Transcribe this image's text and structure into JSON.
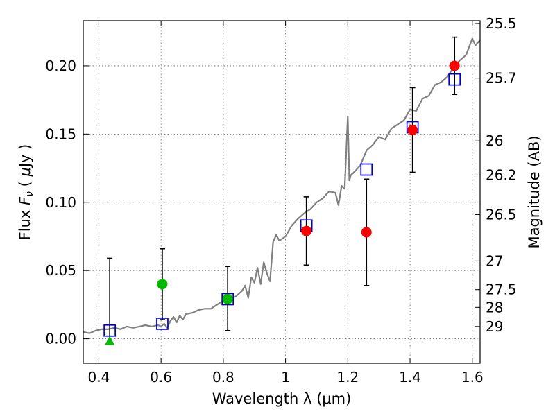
{
  "chart_data": {
    "type": "scatter",
    "title": "",
    "xlabel": "Wavelength  λ (μm)",
    "ylabel": "Flux  F_ν  ( μJy )",
    "ylabel_parts": [
      "Flux  ",
      "F",
      "ν",
      "  ( ",
      "μ",
      "Jy )"
    ],
    "y2label": "Magnitude (AB)",
    "xlim": [
      0.35,
      1.625
    ],
    "ylim": [
      -0.018,
      0.233
    ],
    "grid": true,
    "xticks": [
      0.4,
      0.6,
      0.8,
      1.0,
      1.2,
      1.4,
      1.6
    ],
    "xtick_labels": [
      "0.4",
      "0.6",
      "0.8",
      "1",
      "1.2",
      "1.4",
      "1.6"
    ],
    "yticks": [
      0.0,
      0.05,
      0.1,
      0.15,
      0.2
    ],
    "ytick_labels": [
      "0.00",
      "0.05",
      "0.10",
      "0.15",
      "0.20"
    ],
    "mag_ticks": [
      {
        "label": "25.5",
        "flux": 0.231
      },
      {
        "label": "25.7",
        "flux": 0.191
      },
      {
        "label": "26",
        "flux": 0.145
      },
      {
        "label": "26.2",
        "flux": 0.12
      },
      {
        "label": "26.5",
        "flux": 0.091
      },
      {
        "label": "27",
        "flux": 0.057
      },
      {
        "label": "27.5",
        "flux": 0.036
      },
      {
        "label": "28",
        "flux": 0.023
      },
      {
        "label": "29",
        "flux": 0.009
      }
    ],
    "colors": {
      "spectrum": "#808080",
      "model": "#0000cc",
      "detected": "#ff0000",
      "dropout": "#00bb00",
      "errorbar": "#000000"
    },
    "series": [
      {
        "kind": "spectrum",
        "x": [
          0.35,
          0.37,
          0.39,
          0.41,
          0.43,
          0.45,
          0.47,
          0.49,
          0.51,
          0.53,
          0.55,
          0.57,
          0.59,
          0.6,
          0.61,
          0.62,
          0.63,
          0.64,
          0.65,
          0.66,
          0.67,
          0.68,
          0.7,
          0.72,
          0.74,
          0.76,
          0.78,
          0.8,
          0.82,
          0.84,
          0.86,
          0.87,
          0.88,
          0.89,
          0.9,
          0.91,
          0.92,
          0.93,
          0.94,
          0.95,
          0.96,
          0.97,
          0.98,
          1.0,
          1.02,
          1.04,
          1.06,
          1.08,
          1.1,
          1.12,
          1.14,
          1.16,
          1.17,
          1.18,
          1.19,
          1.2,
          1.205,
          1.21,
          1.22,
          1.24,
          1.26,
          1.28,
          1.3,
          1.32,
          1.34,
          1.36,
          1.38,
          1.4,
          1.42,
          1.44,
          1.46,
          1.48,
          1.5,
          1.52,
          1.54,
          1.56,
          1.58,
          1.6,
          1.61,
          1.625
        ],
        "y": [
          0.005,
          0.004,
          0.006,
          0.007,
          0.007,
          0.008,
          0.007,
          0.009,
          0.008,
          0.009,
          0.01,
          0.009,
          0.01,
          0.009,
          0.011,
          0.008,
          0.013,
          0.016,
          0.012,
          0.017,
          0.014,
          0.018,
          0.019,
          0.021,
          0.022,
          0.022,
          0.025,
          0.028,
          0.029,
          0.031,
          0.035,
          0.039,
          0.03,
          0.045,
          0.041,
          0.052,
          0.04,
          0.056,
          0.048,
          0.042,
          0.071,
          0.076,
          0.072,
          0.075,
          0.083,
          0.088,
          0.092,
          0.095,
          0.1,
          0.103,
          0.108,
          0.107,
          0.098,
          0.112,
          0.11,
          0.163,
          0.116,
          0.12,
          0.122,
          0.127,
          0.138,
          0.142,
          0.148,
          0.146,
          0.154,
          0.157,
          0.16,
          0.168,
          0.167,
          0.176,
          0.178,
          0.186,
          0.188,
          0.192,
          0.199,
          0.204,
          0.208,
          0.22,
          0.215,
          0.219
        ]
      },
      {
        "kind": "model",
        "marker": "square",
        "x": [
          0.435,
          0.604,
          0.814,
          1.067,
          1.26,
          1.408,
          1.543
        ],
        "y": [
          0.006,
          0.011,
          0.029,
          0.083,
          0.124,
          0.155,
          0.19
        ]
      },
      {
        "kind": "detected",
        "marker": "circle",
        "x": [
          1.067,
          1.26,
          1.408,
          1.543
        ],
        "y": [
          0.079,
          0.078,
          0.153,
          0.2
        ],
        "yerr_low": [
          0.054,
          0.039,
          0.122,
          0.179
        ],
        "yerr_high": [
          0.104,
          0.117,
          0.184,
          0.221
        ]
      },
      {
        "kind": "dropout",
        "marker": "circle",
        "x": [
          0.604,
          0.814
        ],
        "y": [
          0.04,
          0.029
        ],
        "yerr_low": [
          0.014,
          0.006
        ],
        "yerr_high": [
          0.066,
          0.053
        ]
      },
      {
        "kind": "dropout",
        "marker": "triangle",
        "x": [
          0.435
        ],
        "y": [
          -0.002
        ],
        "yerr_low": [
          -0.002
        ],
        "yerr_high": [
          0.059
        ]
      }
    ]
  }
}
